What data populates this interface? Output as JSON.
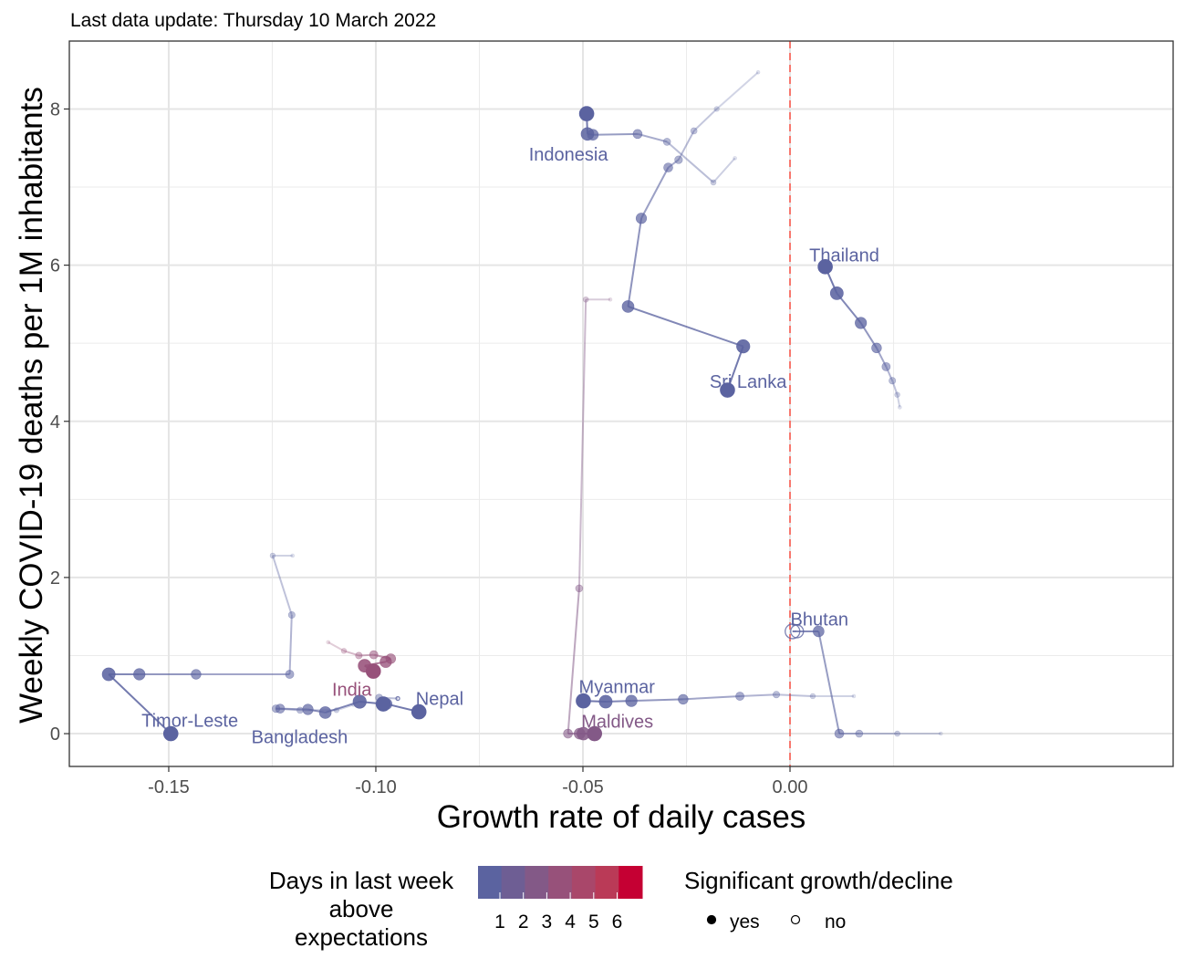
{
  "subtitle": "Last data update: Thursday 10 March 2022",
  "chart_data": {
    "type": "scatter",
    "xlabel": "Growth rate of daily cases",
    "ylabel": "Weekly COVID-19 deaths per 1M inhabitants",
    "xlim": [
      -0.174,
      0.0925
    ],
    "ylim": [
      -0.42,
      8.87
    ],
    "x_ticks": [
      -0.15,
      -0.1,
      -0.05,
      0.0
    ],
    "x_tick_labels": [
      "-0.15",
      "-0.10",
      "-0.05",
      "0.00"
    ],
    "y_ticks": [
      0,
      2,
      4,
      6,
      8
    ],
    "y_tick_labels": [
      "0",
      "2",
      "4",
      "6",
      "8"
    ],
    "grid": true,
    "reference_line": {
      "x": 0,
      "color": "#f8766d",
      "style": "dashed"
    },
    "series": [
      {
        "name": "Indonesia",
        "days_above": 1,
        "label_at": [
          -0.0535,
          7.42
        ],
        "points": [
          [
            -0.0077,
            8.47
          ],
          [
            -0.0177,
            8.0
          ],
          [
            -0.0232,
            7.72
          ],
          [
            -0.0269,
            7.35
          ],
          [
            -0.0294,
            7.25
          ],
          [
            -0.0359,
            6.6
          ],
          [
            -0.0391,
            5.47
          ],
          [
            -0.0113,
            4.96
          ],
          [
            -0.0151,
            4.4
          ]
        ]
      },
      {
        "name": "Indonesia",
        "days_above": 1,
        "points": [
          [
            -0.0133,
            7.37
          ],
          [
            -0.0185,
            7.06
          ],
          [
            -0.0297,
            7.58
          ],
          [
            -0.0368,
            7.68
          ],
          [
            -0.0476,
            7.67
          ],
          [
            -0.0489,
            7.68
          ],
          [
            -0.0491,
            7.94
          ]
        ]
      },
      {
        "name": "Sri Lanka",
        "days_above": 1,
        "label_at": [
          -0.0101,
          4.51
        ],
        "points": []
      },
      {
        "name": "Thailand",
        "days_above": 1,
        "label_at": [
          0.0131,
          6.13
        ],
        "points": [
          [
            0.0265,
            4.18
          ],
          [
            0.0259,
            4.34
          ],
          [
            0.0247,
            4.52
          ],
          [
            0.0232,
            4.7
          ],
          [
            0.0209,
            4.94
          ],
          [
            0.0171,
            5.26
          ],
          [
            0.0113,
            5.64
          ],
          [
            0.0085,
            5.98
          ]
        ]
      },
      {
        "name": "Maldives",
        "days_above": 3,
        "label_at": [
          -0.0417,
          0.16
        ],
        "points": [
          [
            -0.0434,
            5.56
          ],
          [
            -0.0493,
            5.56
          ],
          [
            -0.0509,
            1.86
          ],
          [
            -0.0536,
            0.0
          ],
          [
            -0.0508,
            0.0
          ],
          [
            -0.0499,
            0.0
          ],
          [
            -0.0472,
            0.0
          ]
        ]
      },
      {
        "name": "Myanmar",
        "days_above": 1,
        "label_at": [
          -0.0418,
          0.6
        ],
        "points": [
          [
            0.0154,
            0.48
          ],
          [
            0.0055,
            0.48
          ],
          [
            -0.0033,
            0.5
          ],
          [
            -0.0121,
            0.48
          ],
          [
            -0.0258,
            0.44
          ],
          [
            -0.0383,
            0.42
          ],
          [
            -0.0445,
            0.41
          ],
          [
            -0.0499,
            0.42
          ]
        ]
      },
      {
        "name": "Bhutan",
        "days_above": 1,
        "label_at": [
          0.0071,
          1.47
        ],
        "points": [
          [
            0.0364,
            0.0
          ],
          [
            0.0259,
            0.0
          ],
          [
            0.0167,
            0.0
          ],
          [
            0.0119,
            0.0
          ],
          [
            0.0069,
            1.31
          ],
          [
            0.0017,
            1.31
          ],
          [
            0.0006,
            1.31
          ]
        ]
      },
      {
        "name": "Nepal",
        "days_above": 1,
        "label_at": [
          -0.0846,
          0.45
        ],
        "points": [
          [
            -0.0947,
            0.45
          ],
          [
            -0.0992,
            0.46
          ],
          [
            -0.0974,
            0.38
          ],
          [
            -0.0896,
            0.28
          ]
        ]
      },
      {
        "name": "India",
        "days_above": 4,
        "label_at": [
          -0.1058,
          0.57
        ],
        "points": [
          [
            -0.1115,
            1.17
          ],
          [
            -0.1077,
            1.06
          ],
          [
            -0.1041,
            1.0
          ],
          [
            -0.1005,
            1.01
          ],
          [
            -0.0964,
            0.96
          ],
          [
            -0.0976,
            0.92
          ],
          [
            -0.1027,
            0.87
          ],
          [
            -0.1006,
            0.8
          ]
        ]
      },
      {
        "name": "Bangladesh",
        "days_above": 1,
        "label_at": [
          -0.1184,
          -0.04
        ],
        "points": [
          [
            -0.1054,
            0.37
          ],
          [
            -0.1095,
            0.3
          ],
          [
            -0.1183,
            0.3
          ],
          [
            -0.1241,
            0.32
          ],
          [
            -0.1231,
            0.32
          ],
          [
            -0.1164,
            0.31
          ],
          [
            -0.1122,
            0.27
          ],
          [
            -0.1039,
            0.41
          ],
          [
            -0.0982,
            0.38
          ]
        ]
      },
      {
        "name": "Timor-Leste",
        "days_above": 1,
        "label_at": [
          -0.1449,
          0.17
        ],
        "points": [
          [
            -0.1201,
            2.28
          ],
          [
            -0.1249,
            2.28
          ],
          [
            -0.1203,
            1.52
          ],
          [
            -0.1208,
            0.76
          ],
          [
            -0.1434,
            0.76
          ],
          [
            -0.1571,
            0.76
          ],
          [
            -0.1645,
            0.76
          ],
          [
            -0.1495,
            0.0
          ]
        ]
      }
    ],
    "open_markers": [
      [
        0.0,
        1.31
      ],
      [
        0.0017,
        1.31
      ],
      [
        0.0006,
        1.31
      ],
      [
        -0.0947,
        0.45
      ]
    ],
    "legend": {
      "color_title": "Days in last week above expectations",
      "color_title_lines": [
        "Days in last week",
        "above",
        "expectations"
      ],
      "color_ticks": [
        "1",
        "2",
        "3",
        "4",
        "5",
        "6"
      ],
      "color_scale": [
        "#5b63a0",
        "#6e5e94",
        "#835987",
        "#97517a",
        "#a9476a",
        "#ba3a57",
        "#c50033"
      ],
      "shape_title": "Significant growth/decline",
      "shape_items": [
        {
          "label": "yes",
          "filled": true
        },
        {
          "label": "no",
          "filled": false
        }
      ],
      "placement": "bottom"
    }
  }
}
